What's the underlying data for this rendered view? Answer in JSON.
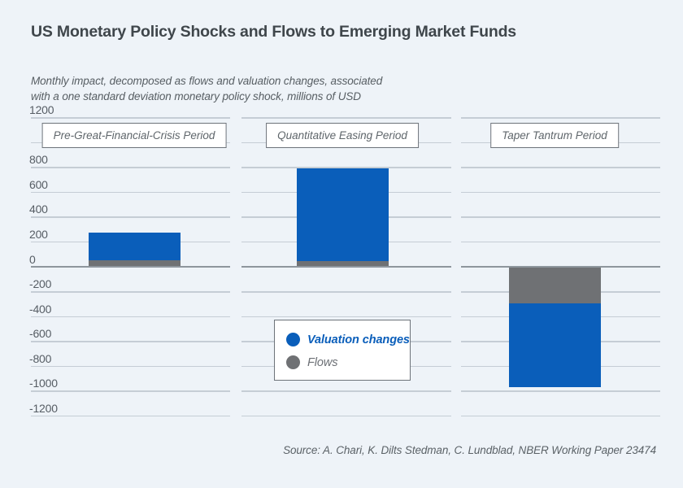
{
  "header": {
    "title": "US Monetary Policy Shocks and Flows to Emerging Market Funds",
    "subtitle_line1": "Monthly impact, decomposed as flows and valuation changes, associated",
    "subtitle_line2": "with a one standard deviation monetary policy shock, millions of USD"
  },
  "chart_data": {
    "type": "bar",
    "stacked": true,
    "title": "US Monetary Policy Shocks and Flows to Emerging Market Funds",
    "subtitle": "Monthly impact, decomposed as flows and valuation changes, associated with a one standard deviation monetary policy shock, millions of USD",
    "unit": "millions of USD",
    "categories": [
      "Pre-Great-Financial-Crisis Period",
      "Quantitative Easing Period",
      "Taper Tantrum Period"
    ],
    "series": [
      {
        "name": "Valuation changes",
        "color": "#0a5eba",
        "values": [
          220,
          750,
          -670
        ]
      },
      {
        "name": "Flows",
        "color": "#6f7174",
        "values": [
          50,
          40,
          -300
        ]
      }
    ],
    "totals": [
      270,
      790,
      -970
    ],
    "ylim": [
      -1200,
      1200
    ],
    "ytick_step": 200,
    "hidden_tick_labels": [
      1000
    ],
    "grid": true,
    "zero_line_emphasized": true,
    "legend_position": "bottom-center"
  },
  "colors": {
    "background": "#eef3f8",
    "valuation_blue": "#0a5eba",
    "flows_gray": "#6f7174",
    "gridline": "#c5cdd5",
    "zero_line": "#8e969d"
  },
  "footer": {
    "source": "Source: A. Chari, K. Dilts Stedman, C. Lundblad, NBER Working Paper 23474"
  }
}
